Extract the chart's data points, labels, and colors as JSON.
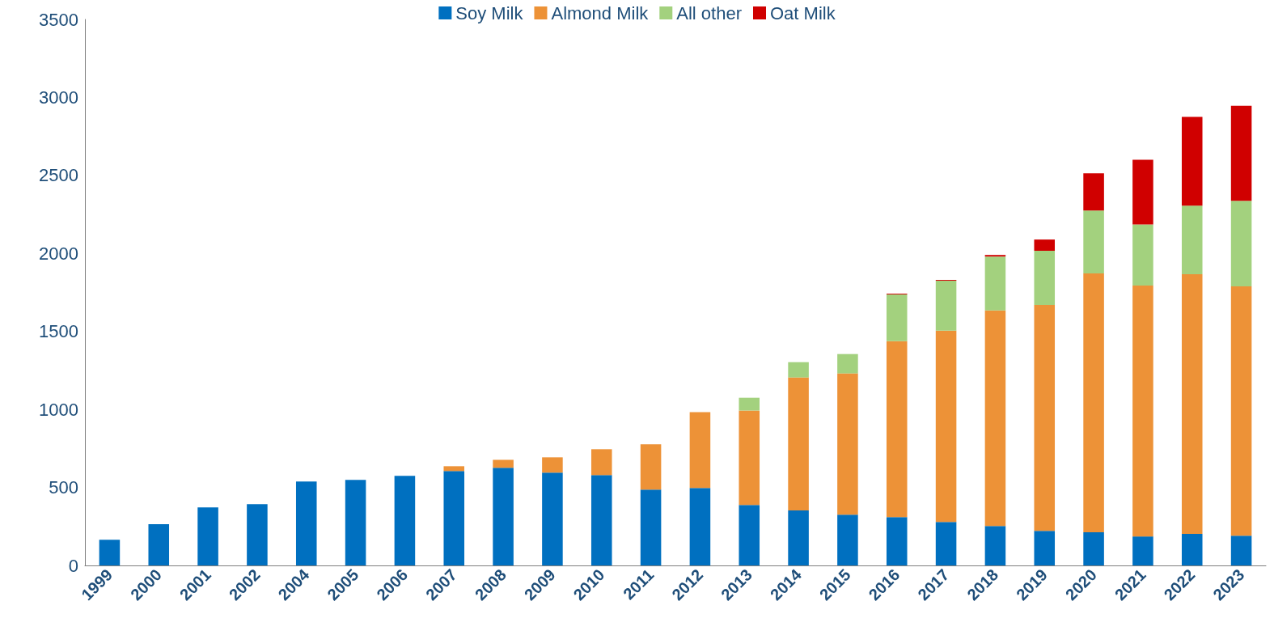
{
  "chart_data": {
    "type": "bar",
    "stacked": true,
    "categories": [
      "1999",
      "2000",
      "2001",
      "2002",
      "2004",
      "2005",
      "2006",
      "2007",
      "2008",
      "2009",
      "2010",
      "2011",
      "2012",
      "2013",
      "2014",
      "2015",
      "2016",
      "2017",
      "2018",
      "2019",
      "2020",
      "2021",
      "2022",
      "2023"
    ],
    "series": [
      {
        "name": "Soy Milk",
        "color": "#0070c0",
        "values": [
          165,
          264,
          372,
          393,
          538,
          548,
          574,
          605,
          626,
          595,
          579,
          486,
          496,
          388,
          352,
          326,
          310,
          279,
          253,
          222,
          212,
          186,
          202,
          191
        ]
      },
      {
        "name": "Almond Milk",
        "color": "#ed9237",
        "values": [
          null,
          null,
          null,
          null,
          null,
          null,
          null,
          31,
          51,
          98,
          166,
          290,
          486,
          605,
          853,
          905,
          1127,
          1226,
          1381,
          1448,
          1660,
          1608,
          1665,
          1598
        ]
      },
      {
        "name": "All other",
        "color": "#a3d17e",
        "values": [
          null,
          null,
          null,
          null,
          null,
          null,
          null,
          null,
          null,
          null,
          null,
          null,
          null,
          82,
          98,
          124,
          300,
          320,
          346,
          347,
          403,
          392,
          439,
          548
        ]
      },
      {
        "name": "Oat Milk",
        "color": "#d00000",
        "values": [
          null,
          null,
          null,
          null,
          null,
          null,
          null,
          null,
          null,
          null,
          null,
          null,
          null,
          null,
          null,
          null,
          5,
          5,
          10,
          72,
          238,
          415,
          569,
          610
        ]
      }
    ],
    "ylim": [
      0,
      3500
    ],
    "yticks": [
      0,
      500,
      1000,
      1500,
      2000,
      2500,
      3000,
      3500
    ],
    "grid": false,
    "legend": "top"
  }
}
